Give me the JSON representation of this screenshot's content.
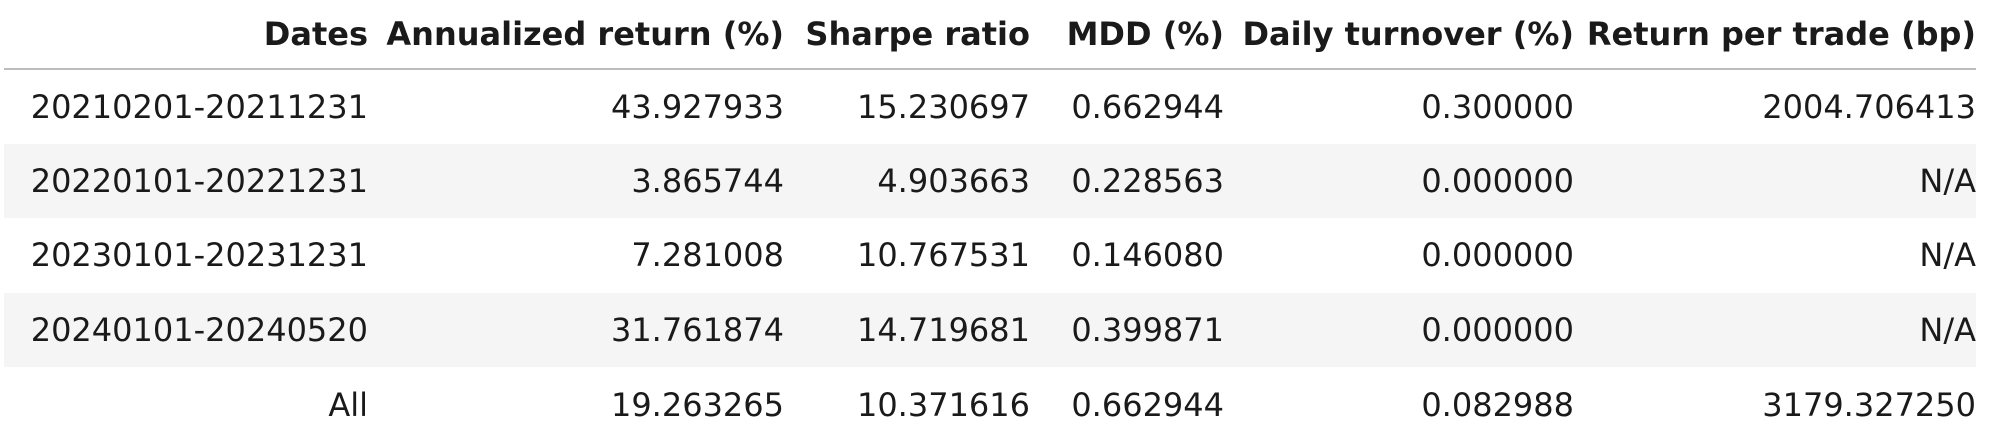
{
  "table": {
    "headers": [
      "Dates",
      "Annualized return (%)",
      "Sharpe ratio",
      "MDD (%)",
      "Daily turnover (%)",
      "Return per trade (bp)"
    ],
    "rows": [
      [
        "20210201-20211231",
        "43.927933",
        "15.230697",
        "0.662944",
        "0.300000",
        "2004.706413"
      ],
      [
        "20220101-20221231",
        "3.865744",
        "4.903663",
        "0.228563",
        "0.000000",
        "N/A"
      ],
      [
        "20230101-20231231",
        "7.281008",
        "10.767531",
        "0.146080",
        "0.000000",
        "N/A"
      ],
      [
        "20240101-20240520",
        "31.761874",
        "14.719681",
        "0.399871",
        "0.000000",
        "N/A"
      ],
      [
        "All",
        "19.263265",
        "10.371616",
        "0.662944",
        "0.082988",
        "3179.327250"
      ]
    ]
  }
}
